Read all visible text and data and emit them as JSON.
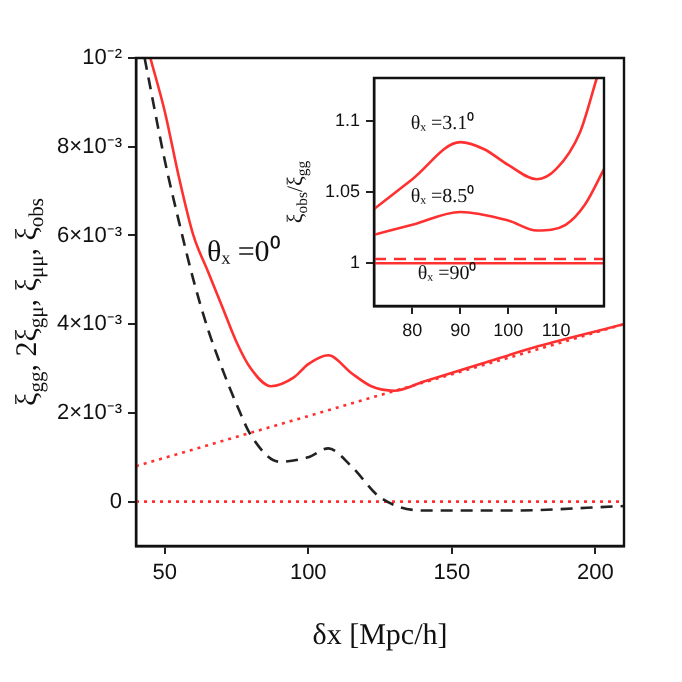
{
  "chart_data": [
    {
      "type": "line",
      "xlabel": "δx [Mpc/h]",
      "ylabel": "ξ$_{gg}$, 2ξ$_{gμ}$, ξ$_{μμ}$, ξ$_{obs}$",
      "xlim": [
        40,
        210
      ],
      "xticks": [
        50,
        100,
        150,
        200
      ],
      "ylim": [
        -0.001,
        0.01
      ],
      "yticks": [
        0,
        {
          "value": 0.002,
          "label": "2×10⁻³"
        },
        {
          "value": 0.004,
          "label": "4×10⁻³"
        },
        {
          "value": 0.006,
          "label": "6×10⁻³"
        },
        {
          "value": 0.008,
          "label": "8×10⁻³"
        },
        {
          "value": 0.01,
          "label": "10⁻²"
        }
      ],
      "grid": false,
      "legend": false,
      "series": [
        {
          "name": "θₓ =0⁰",
          "color": "#ff3030",
          "line_style": "solid",
          "x": [
            45,
            50,
            55,
            60,
            65,
            70,
            75,
            80,
            87,
            95,
            100,
            107,
            115,
            122,
            130,
            140,
            160,
            180,
            210
          ],
          "values": [
            0.01,
            0.0088,
            0.0073,
            0.006,
            0.0052,
            0.0044,
            0.0036,
            0.003,
            0.0026,
            0.0028,
            0.0031,
            0.0033,
            0.0029,
            0.0026,
            0.0025,
            0.0027,
            0.0031,
            0.0035,
            0.004
          ]
        },
        {
          "color": "#222222",
          "line_style": "dashed",
          "x": [
            43,
            50,
            55,
            60,
            65,
            70,
            75,
            80,
            90,
            100,
            107,
            115,
            125,
            140,
            170,
            210
          ],
          "values": [
            0.01,
            0.0077,
            0.0063,
            0.005,
            0.0039,
            0.003,
            0.0022,
            0.0015,
            0.0009,
            0.001,
            0.0012,
            0.0008,
            0.0001,
            -0.0002,
            -0.0002,
            -0.0001
          ]
        },
        {
          "color": "#ff3030",
          "line_style": "dotted",
          "x": [
            40,
            210
          ],
          "values": [
            0.0008,
            0.004
          ]
        },
        {
          "color": "#ff3030",
          "line_style": "dotted",
          "x": [
            40,
            210
          ],
          "values": [
            0,
            0
          ]
        }
      ]
    },
    {
      "type": "line",
      "ylabel": "ξ$_{obs}$/ξ$_{gg}$",
      "xlim": [
        72,
        120
      ],
      "xticks": [
        80,
        90,
        100,
        110
      ],
      "ylim": [
        0.97,
        1.13
      ],
      "yticks": [
        1,
        1.05,
        1.1
      ],
      "grid": false,
      "legend": false,
      "series": [
        {
          "name": "θₓ =3.1⁰",
          "color": "#ff3030",
          "line_style": "solid",
          "x": [
            72,
            80,
            90,
            95,
            100,
            106,
            110,
            115,
            118.5
          ],
          "values": [
            1.038,
            1.059,
            1.085,
            1.08,
            1.069,
            1.059,
            1.066,
            1.092,
            1.13
          ]
        },
        {
          "name": "θₓ =8.5⁰",
          "color": "#ff3030",
          "line_style": "solid",
          "x": [
            72,
            80,
            90,
            100,
            106,
            112,
            116,
            120
          ],
          "values": [
            1.02,
            1.027,
            1.036,
            1.03,
            1.023,
            1.027,
            1.041,
            1.066
          ]
        },
        {
          "name": "θₓ =90⁰",
          "color": "#ff3030",
          "line_style": "solid",
          "x": [
            72,
            120
          ],
          "values": [
            1,
            1
          ]
        },
        {
          "color": "#ff3030",
          "line_style": "dashed",
          "x": [
            72,
            120
          ],
          "values": [
            1.003,
            1.003
          ]
        }
      ]
    }
  ]
}
